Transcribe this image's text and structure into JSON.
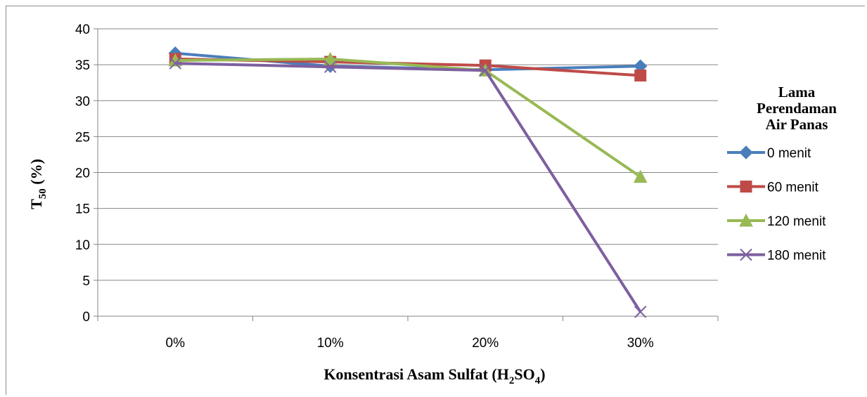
{
  "chart_data": {
    "type": "line",
    "categories": [
      "0%",
      "10%",
      "20%",
      "30%"
    ],
    "yticks": [
      "0",
      "5",
      "10",
      "15",
      "20",
      "25",
      "30",
      "35",
      "40"
    ],
    "ylim": [
      0,
      40
    ],
    "grid": true,
    "ylabel_main": "T",
    "ylabel_sub": "50",
    "ylabel_rest": " (%)",
    "xlabel_main": "Konsentrasi  Asam Sulfat  (H",
    "xlabel_sub1": "2",
    "xlabel_mid": "SO",
    "xlabel_sub2": "4",
    "xlabel_end": ")",
    "legend_title": [
      "Lama",
      "Perendaman",
      "Air Panas"
    ],
    "legend_position": "right",
    "series": [
      {
        "name": "0 menit",
        "values": [
          36.6,
          34.8,
          34.3,
          34.8
        ],
        "color": "#4a7ebb",
        "marker": "diamond"
      },
      {
        "name": "60 menit",
        "values": [
          35.8,
          35.4,
          34.9,
          33.5
        ],
        "color": "#be4b48",
        "marker": "square"
      },
      {
        "name": "120 menit",
        "values": [
          35.6,
          35.8,
          34.2,
          19.4
        ],
        "color": "#98b954",
        "marker": "triangle"
      },
      {
        "name": "180 menit",
        "values": [
          35.2,
          34.7,
          34.2,
          0.6
        ],
        "color": "#7d60a0",
        "marker": "x"
      }
    ]
  }
}
